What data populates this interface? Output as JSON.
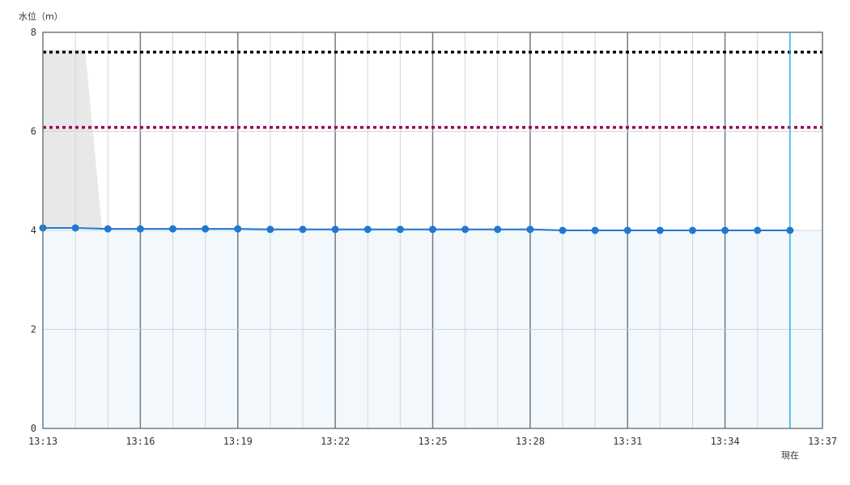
{
  "chart_data": {
    "type": "line",
    "ylabel": "水位（m）",
    "ylim": [
      0,
      8
    ],
    "yticks": [
      "0",
      "2",
      "4",
      "6",
      "8"
    ],
    "xlim_minutes": [
      0,
      24
    ],
    "xticks": [
      "13:13",
      "13:16",
      "13:19",
      "13:22",
      "13:25",
      "13:28",
      "13:31",
      "13:34",
      "13:37"
    ],
    "now_label": "現在",
    "now_time": "13:36",
    "series": [
      {
        "x": [
          "13:13",
          "13:14",
          "13:15",
          "13:16",
          "13:17",
          "13:18",
          "13:19",
          "13:20",
          "13:21",
          "13:22",
          "13:23",
          "13:24",
          "13:25",
          "13:26",
          "13:27",
          "13:28",
          "13:29",
          "13:30",
          "13:31",
          "13:32",
          "13:33",
          "13:34",
          "13:35",
          "13:36"
        ],
        "values": [
          4.05,
          4.05,
          4.03,
          4.03,
          4.03,
          4.03,
          4.03,
          4.02,
          4.02,
          4.02,
          4.02,
          4.02,
          4.02,
          4.02,
          4.02,
          4.02,
          4.0,
          4.0,
          4.0,
          4.0,
          4.0,
          4.0,
          4.0,
          4.0
        ],
        "color": "#1f78d1"
      }
    ],
    "reference_lines": [
      {
        "value": 7.6,
        "color": "#000000"
      },
      {
        "value": 6.08,
        "color": "#99005a"
      }
    ],
    "shaded_region": {
      "x": [
        "13:13",
        "13:14.3",
        "13:15.4"
      ],
      "values": [
        7.65,
        7.65,
        0
      ],
      "color": "#e8e8e8"
    },
    "grid": true,
    "colors": {
      "major_grid": "#6f7b86",
      "minor_grid": "#cfd6dd",
      "area_fill": "#f3f8fd",
      "now_line": "#2fb3d9"
    }
  }
}
